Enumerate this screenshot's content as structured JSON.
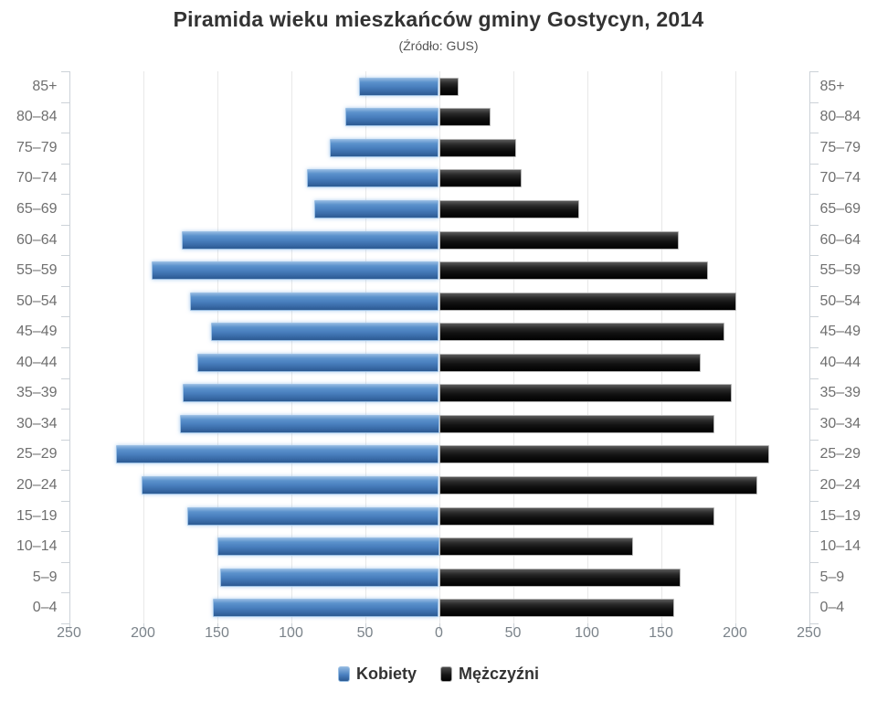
{
  "title": "Piramida wieku mieszkańców gminy Gostycyn, 2014",
  "subtitle": "(Źródło: GUS)",
  "colors": {
    "female_bar": "#4a80bf",
    "male_bar": "#111111",
    "gridline": "#e8e8e8",
    "axis": "#ccd2d8",
    "axis_label": "#6f6f6f",
    "tick_label": "#7b838a",
    "title_text": "#333333"
  },
  "legend": [
    {
      "label": "Kobiety",
      "color": "#4a80bf"
    },
    {
      "label": "Mężczyźni",
      "color": "#111111"
    }
  ],
  "axis": {
    "x_tick_labels": [
      "250",
      "200",
      "150",
      "100",
      "50",
      "0",
      "50",
      "100",
      "150",
      "200",
      "250"
    ]
  },
  "chart_data": {
    "type": "bar",
    "variant": "population-pyramid",
    "title": "Piramida wieku mieszkańców gminy Gostycyn, 2014",
    "subtitle": "(Źródło: GUS)",
    "categories": [
      "85+",
      "80–84",
      "75–79",
      "70–74",
      "65–69",
      "60–64",
      "55–59",
      "50–54",
      "45–49",
      "40–44",
      "35–39",
      "30–34",
      "25–29",
      "20–24",
      "15–19",
      "10–14",
      "5–9",
      "0–4"
    ],
    "series": [
      {
        "name": "Kobiety",
        "side": "left",
        "color": "#4a80bf",
        "values": [
          54,
          63,
          74,
          89,
          84,
          174,
          194,
          168,
          154,
          163,
          173,
          175,
          218,
          201,
          170,
          150,
          148,
          153
        ]
      },
      {
        "name": "Mężczyźni",
        "side": "right",
        "color": "#111111",
        "values": [
          13,
          35,
          52,
          56,
          95,
          162,
          182,
          201,
          193,
          177,
          198,
          186,
          223,
          215,
          186,
          131,
          163,
          159
        ]
      }
    ],
    "x_axis_max_each_side": 250,
    "x_tick_interval": 50,
    "grid": true,
    "legend_position": "bottom",
    "category_labels_both_sides": true
  }
}
